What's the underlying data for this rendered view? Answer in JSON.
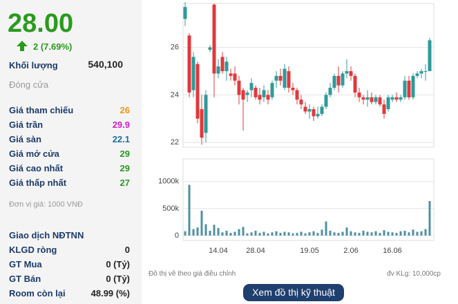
{
  "quote": {
    "price": "28.00",
    "change": "2 (7.69%)",
    "volume_label": "Khối lượng",
    "volume": "540,100",
    "status": "Đóng cửa"
  },
  "stats": [
    {
      "label": "Giá tham chiếu",
      "value": "26",
      "color": "#f0941c"
    },
    {
      "label": "Giá trần",
      "value": "29.9",
      "color": "#d020c8"
    },
    {
      "label": "Giá sàn",
      "value": "22.1",
      "color": "#1a6fa0"
    },
    {
      "label": "Giá mở cửa",
      "value": "29",
      "color": "#2a9a1e"
    },
    {
      "label": "Giá cao nhất",
      "value": "29",
      "color": "#2a9a1e"
    },
    {
      "label": "Giá thấp nhất",
      "value": "27",
      "color": "#2a9a1e"
    }
  ],
  "unit_note": "Đơn vị giá: 1000 VNĐ",
  "foreign": {
    "title": "Giao dịch NĐTNN",
    "rows": [
      {
        "label": "KLGD ròng",
        "value": "0"
      },
      {
        "label": "GT Mua",
        "value": "0 (Tỷ)"
      },
      {
        "label": "GT Bán",
        "value": "0 (Tỷ)"
      },
      {
        "label": "Room còn lại",
        "value": "48.99 (%)"
      }
    ]
  },
  "chart_data": {
    "type": "candlestick",
    "categories": [
      null,
      null,
      null,
      null,
      null,
      null,
      null,
      null,
      "14.04",
      null,
      null,
      null,
      null,
      null,
      null,
      null,
      null,
      "28.04",
      null,
      null,
      null,
      null,
      null,
      null,
      null,
      null,
      null,
      null,
      null,
      null,
      "19.05",
      null,
      null,
      null,
      null,
      null,
      null,
      null,
      null,
      null,
      "2.06",
      null,
      null,
      null,
      null,
      null,
      null,
      null,
      null,
      null,
      "16.06",
      null,
      null,
      null,
      null,
      null,
      null,
      null,
      null,
      null
    ],
    "open": [
      27.2,
      26.5,
      24.2,
      25.3,
      23.4,
      22.4,
      25.9,
      27.8,
      24.9,
      25.6,
      25.0,
      24.9,
      24.9,
      24.6,
      24.2,
      24.0,
      24.2,
      24.3,
      24.0,
      23.9,
      24.0,
      23.9,
      24.6,
      24.8,
      24.3,
      25.0,
      24.3,
      24.2,
      23.8,
      23.5,
      23.3,
      23.4,
      23.1,
      23.2,
      23.5,
      24.0,
      24.3,
      24.8,
      24.4,
      24.9,
      25.0,
      24.8,
      24.1,
      23.9,
      23.8,
      23.9,
      23.7,
      23.9,
      23.6,
      23.4,
      23.8,
      23.9,
      23.8,
      23.9,
      24.6,
      23.9,
      24.8,
      24.9,
      25.0,
      25.0
    ],
    "high": [
      27.9,
      26.6,
      25.8,
      25.4,
      24.0,
      24.2,
      26.1,
      27.85,
      25.5,
      25.8,
      25.6,
      25.1,
      25.2,
      24.8,
      24.3,
      24.2,
      24.7,
      24.4,
      24.3,
      24.4,
      24.2,
      24.6,
      25.0,
      25.1,
      25.3,
      25.2,
      24.5,
      24.3,
      24.0,
      23.7,
      23.6,
      23.5,
      23.5,
      23.6,
      24.1,
      24.5,
      24.9,
      25.2,
      25.0,
      25.5,
      25.2,
      24.9,
      24.3,
      24.0,
      24.2,
      24.1,
      24.0,
      24.0,
      23.8,
      24.0,
      24.0,
      24.1,
      24.0,
      24.8,
      24.8,
      24.9,
      25.0,
      25.1,
      25.3,
      26.4
    ],
    "low": [
      26.9,
      23.9,
      23.9,
      22.8,
      21.9,
      22.0,
      25.8,
      23.9,
      24.7,
      24.9,
      24.6,
      24.6,
      24.4,
      23.6,
      22.5,
      23.7,
      23.9,
      23.8,
      23.6,
      23.7,
      23.6,
      23.8,
      24.3,
      24.4,
      24.2,
      24.1,
      24.0,
      23.6,
      23.4,
      23.2,
      23.0,
      22.9,
      23.0,
      23.1,
      23.4,
      23.9,
      24.2,
      24.1,
      24.3,
      24.7,
      24.6,
      23.9,
      23.7,
      23.6,
      23.5,
      23.6,
      23.6,
      23.5,
      23.0,
      23.3,
      23.7,
      23.7,
      23.7,
      23.8,
      23.8,
      23.8,
      24.7,
      24.7,
      24.6,
      25.0
    ],
    "close": [
      27.7,
      24.1,
      25.6,
      23.0,
      22.2,
      24.0,
      26.0,
      24.9,
      25.2,
      25.0,
      25.4,
      24.8,
      24.6,
      24.0,
      23.8,
      24.1,
      24.5,
      23.9,
      23.8,
      24.2,
      23.8,
      24.5,
      24.8,
      24.6,
      25.1,
      24.3,
      24.2,
      23.8,
      23.6,
      23.3,
      23.4,
      23.1,
      23.2,
      23.5,
      24.0,
      24.3,
      24.8,
      24.4,
      24.9,
      25.0,
      24.8,
      24.1,
      23.9,
      23.8,
      23.9,
      23.7,
      23.9,
      23.6,
      23.2,
      23.9,
      23.9,
      23.8,
      23.9,
      24.6,
      23.9,
      24.8,
      24.9,
      25.0,
      25.0,
      26.3
    ],
    "up_color": "#2f9a9a",
    "down_color": "#e2383c",
    "ylim": [
      21.8,
      27.85
    ],
    "yticks": [
      22,
      24,
      26
    ],
    "grid": true,
    "volume": {
      "values": [
        80000,
        940000,
        120000,
        150000,
        460000,
        210000,
        90000,
        200000,
        140000,
        60000,
        90000,
        50000,
        70000,
        120000,
        160000,
        40000,
        60000,
        90000,
        50000,
        70000,
        40000,
        60000,
        80000,
        50000,
        70000,
        60000,
        40000,
        50000,
        70000,
        40000,
        60000,
        80000,
        50000,
        110000,
        260000,
        90000,
        60000,
        50000,
        70000,
        150000,
        80000,
        60000,
        50000,
        90000,
        70000,
        60000,
        80000,
        50000,
        100000,
        70000,
        60000,
        50000,
        80000,
        90000,
        60000,
        110000,
        70000,
        80000,
        120000,
        640000
      ],
      "color": "#4f8fa5",
      "ylim": [
        -90000,
        1420000
      ],
      "yticks": [
        0,
        {
          "value": 500000,
          "label": "500k"
        },
        {
          "value": 1000000,
          "label": "1000k"
        }
      ]
    },
    "note_left": "Đồ thị vẽ theo giá điều chỉnh",
    "note_right": "đv KLg: 10,000cp"
  },
  "button": "Xem đồ thị kỹ thuật"
}
